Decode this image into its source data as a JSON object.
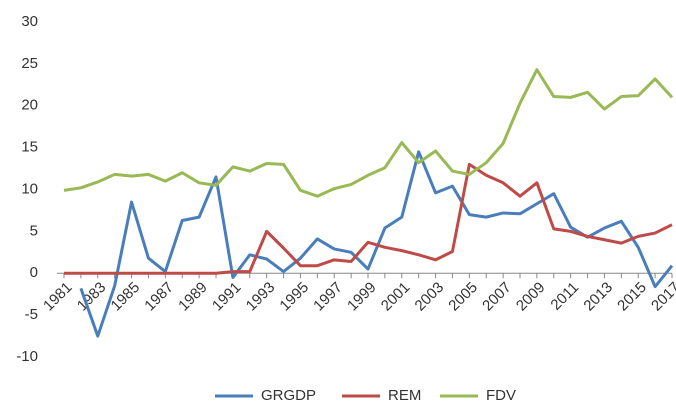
{
  "chart_data": {
    "type": "line",
    "categories": [
      "1981",
      null,
      "1983",
      null,
      "1985",
      null,
      "1987",
      null,
      "1989",
      null,
      "1991",
      null,
      "1993",
      null,
      "1995",
      null,
      "1997",
      null,
      "1999",
      null,
      "2001",
      null,
      "2003",
      null,
      "2005",
      null,
      "2007",
      null,
      "2009",
      null,
      "2011",
      null,
      "2013",
      null,
      "2015",
      null,
      "2017"
    ],
    "series": [
      {
        "name": "GRGDP",
        "color": "#4a7ebb",
        "values": [
          null,
          -1.8,
          -7.5,
          -1.5,
          8.5,
          1.8,
          0.2,
          6.3,
          6.7,
          11.5,
          -0.5,
          2.2,
          1.7,
          0.2,
          1.8,
          4.1,
          2.9,
          2.5,
          0.5,
          5.4,
          6.7,
          14.5,
          9.6,
          10.4,
          7.0,
          6.7,
          7.2,
          7.1,
          8.3,
          9.5,
          5.5,
          4.3,
          5.4,
          6.2,
          3.1,
          -1.6,
          0.9
        ]
      },
      {
        "name": "REM",
        "color": "#be4b48",
        "values": [
          0,
          0,
          0,
          0,
          0,
          0,
          0,
          0,
          0,
          0,
          0.2,
          0.2,
          5.0,
          3.0,
          0.9,
          0.9,
          1.6,
          1.4,
          3.7,
          3.1,
          2.7,
          2.2,
          1.6,
          2.6,
          13.0,
          11.7,
          10.8,
          9.2,
          10.8,
          5.3,
          5.0,
          4.4,
          4.0,
          3.6,
          4.4,
          4.8,
          5.8
        ]
      },
      {
        "name": "FDV",
        "color": "#98b954",
        "values": [
          9.9,
          10.2,
          10.9,
          11.8,
          11.6,
          11.8,
          11.0,
          12.0,
          10.8,
          10.5,
          12.7,
          12.2,
          13.1,
          13.0,
          9.9,
          9.2,
          10.1,
          10.6,
          11.7,
          12.6,
          15.6,
          13.2,
          14.6,
          12.2,
          11.8,
          13.2,
          15.5,
          20.3,
          24.3,
          21.1,
          21.0,
          21.6,
          19.6,
          21.1,
          21.2,
          23.2,
          21.0
        ]
      }
    ],
    "ylim": [
      -10,
      30
    ],
    "yticks": [
      -10,
      -5,
      0,
      5,
      10,
      15,
      20,
      25,
      30
    ],
    "grid": false,
    "legend": "bottom"
  }
}
